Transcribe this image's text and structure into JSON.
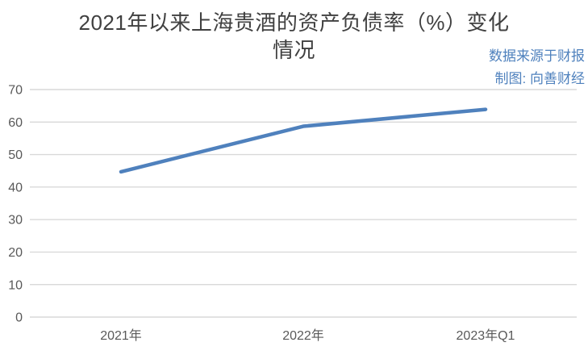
{
  "header": {
    "title_lines": [
      "2021年以来上海贵酒的资产负债率（%）变化",
      "情况"
    ],
    "source_note": "数据来源于财报",
    "credit_note": "制图: 向善财经"
  },
  "colors": {
    "background": "#ffffff",
    "title_text": "#404040",
    "note_text": "#4f81bd",
    "series_line": "#4f81bd",
    "axis_text": "#595959",
    "gridline": "#d9d9d9"
  },
  "chart_data": {
    "type": "line",
    "title": "2021年以来上海贵酒的资产负债率（%）变化情况",
    "categories": [
      "2021年",
      "2022年",
      "2023年Q1"
    ],
    "values": [
      44.7,
      58.7,
      63.9
    ],
    "xlabel": "",
    "ylabel": "",
    "ylim": [
      0,
      70
    ],
    "ytick_step": 10,
    "yticks": [
      0,
      10,
      20,
      30,
      40,
      50,
      60,
      70
    ],
    "grid": true,
    "legend": false,
    "markers": false,
    "annotations": [
      "数据来源于财报",
      "制图: 向善财经"
    ]
  }
}
